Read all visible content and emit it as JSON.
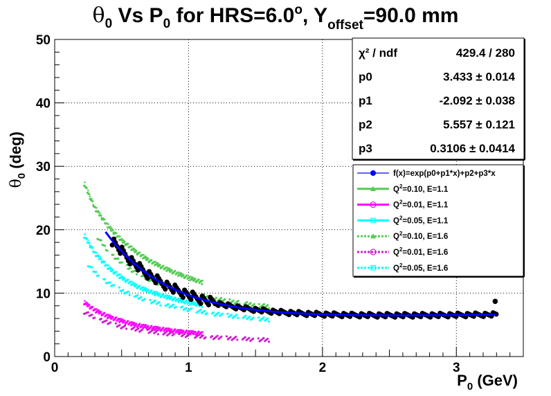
{
  "chart_data": {
    "type": "scatter",
    "title": {
      "theta": "θ",
      "theta_sub": "0",
      "vs": " Vs P",
      "p_sub": "0",
      "for": " for HRS=6.0",
      "deg_sup": "o",
      "y": ", Y",
      "y_sub": "offset",
      "rest": "=90.0 mm"
    },
    "xlabel": {
      "main": "P",
      "sub": "0",
      "unit": " (GeV)"
    },
    "ylabel": {
      "main": "θ",
      "sub": "0",
      "unit": " (deg)"
    },
    "xlim": [
      0,
      3.5
    ],
    "ylim": [
      0,
      50
    ],
    "x_ticks": [
      0,
      1,
      2,
      3
    ],
    "x_tick_labels": [
      "0",
      "1",
      "2",
      "3"
    ],
    "y_ticks": [
      0,
      10,
      20,
      30,
      40,
      50
    ],
    "y_tick_labels": [
      "0",
      "10",
      "20",
      "30",
      "40",
      "50"
    ],
    "grid": true,
    "fit": {
      "formula": "f(x)=exp(p0+p1*x)+p2+p3*x",
      "p0": 3.433,
      "p1": -2.092,
      "p2": 5.557,
      "p3": 0.3106,
      "x_range": [
        0.38,
        3.3
      ],
      "color": "#0000ff"
    },
    "stats": [
      {
        "name": "χ² / ndf",
        "value": "429.4 / 280"
      },
      {
        "name": "p0",
        "value": "3.433 ± 0.014"
      },
      {
        "name": "p1",
        "value": "-2.092 ± 0.038"
      },
      {
        "name": "p2",
        "value": "5.557 ± 0.121"
      },
      {
        "name": "p3",
        "value": "0.3106 ± 0.0414"
      }
    ],
    "data_points": {
      "x_range": [
        0.43,
        3.3
      ],
      "outlier": [
        3.29,
        8.7
      ],
      "color": "#000000"
    },
    "series": [
      {
        "name": "Q2=0.10, E=1.1",
        "label_pre": "Q",
        "label_sup": "2",
        "label_post": "=0.10, E=1.1",
        "color": "#55cc55",
        "style": "solid",
        "marker": "triangle",
        "x": [
          0.22,
          0.3,
          0.4,
          0.5,
          0.6,
          0.7,
          0.8,
          0.9,
          1.0,
          1.1
        ],
        "y": [
          27.2,
          23.4,
          20.5,
          18.3,
          16.6,
          15.2,
          14.1,
          13.2,
          12.4,
          11.7
        ]
      },
      {
        "name": "Q2=0.01, E=1.1",
        "label_pre": "Q",
        "label_sup": "2",
        "label_post": "=0.01, E=1.1",
        "color": "#ff00ff",
        "style": "solid",
        "marker": "circle",
        "x": [
          0.22,
          0.3,
          0.4,
          0.5,
          0.6,
          0.7,
          0.8,
          0.9,
          1.0,
          1.1
        ],
        "y": [
          8.5,
          7.3,
          6.3,
          5.6,
          5.0,
          4.6,
          4.3,
          4.0,
          3.8,
          3.6
        ]
      },
      {
        "name": "Q2=0.05, E=1.1",
        "label_pre": "Q",
        "label_sup": "2",
        "label_post": "=0.05, E=1.1",
        "color": "#00ffff",
        "style": "solid",
        "marker": "square",
        "x": [
          0.22,
          0.3,
          0.4,
          0.5,
          0.6,
          0.7,
          0.8,
          0.9,
          1.0,
          1.1
        ],
        "y": [
          19.0,
          16.3,
          14.0,
          12.4,
          11.2,
          10.3,
          9.6,
          9.0,
          8.5,
          8.1
        ]
      },
      {
        "name": "Q2=0.10, E=1.6",
        "label_pre": "Q",
        "label_sup": "2",
        "label_post": "=0.10, E=1.6",
        "color": "#55cc55",
        "style": "dashed",
        "marker": "triangle",
        "x": [
          0.32,
          0.4,
          0.5,
          0.6,
          0.7,
          0.8,
          0.9,
          1.0,
          1.2,
          1.4,
          1.6
        ],
        "y": [
          18.8,
          16.6,
          14.7,
          13.3,
          12.2,
          11.3,
          10.6,
          10.0,
          9.1,
          8.4,
          7.9
        ]
      },
      {
        "name": "Q2=0.01, E=1.6",
        "label_pre": "Q",
        "label_sup": "2",
        "label_post": "=0.01, E=1.6",
        "color": "#cc22cc",
        "style": "dashed",
        "marker": "circle",
        "x": [
          0.22,
          0.3,
          0.4,
          0.5,
          0.6,
          0.8,
          1.0,
          1.2,
          1.4,
          1.6
        ],
        "y": [
          7.0,
          6.2,
          5.3,
          4.7,
          4.3,
          3.7,
          3.3,
          3.0,
          2.8,
          2.6
        ]
      },
      {
        "name": "Q2=0.05, E=1.6",
        "label_pre": "Q",
        "label_sup": "2",
        "label_post": "=0.05, E=1.6",
        "color": "#00ffff",
        "style": "dashed",
        "marker": "square",
        "x": [
          0.25,
          0.3,
          0.4,
          0.5,
          0.6,
          0.7,
          0.8,
          1.0,
          1.2,
          1.4,
          1.6
        ],
        "y": [
          14.5,
          13.3,
          11.6,
          10.4,
          9.5,
          8.8,
          8.3,
          7.4,
          6.7,
          6.2,
          5.8
        ]
      }
    ]
  }
}
